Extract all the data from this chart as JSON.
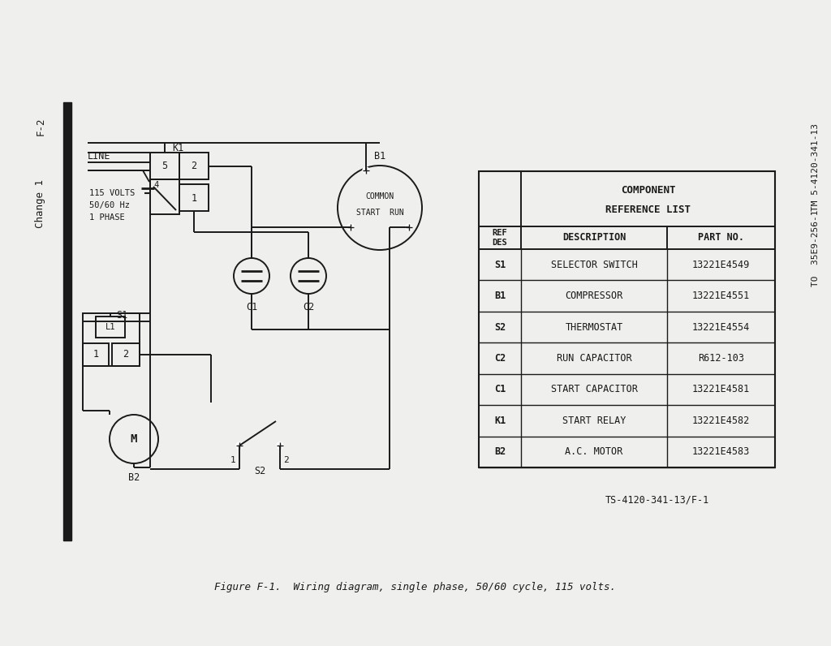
{
  "bg_color": "#efefed",
  "line_color": "#1a1a1a",
  "title_text": "Figure F-1.  Wiring diagram, single phase, 50/60 cycle, 115 volts.",
  "left_label1": "F-2",
  "left_label2": "Change 1",
  "right_label1": "TM 5-4120-341-13",
  "right_label2": "TO  35E9-256-1",
  "ref_code": "TS-4120-341-13/F-1",
  "table_header1": "COMPONENT",
  "table_header2": "REFERENCE LIST",
  "table_rows": [
    [
      "S1",
      "SELECTOR SWITCH",
      "13221E4549"
    ],
    [
      "B1",
      "COMPRESSOR",
      "13221E4551"
    ],
    [
      "S2",
      "THERMOSTAT",
      "13221E4554"
    ],
    [
      "C2",
      "RUN CAPACITOR",
      "R612-103"
    ],
    [
      "C1",
      "START CAPACITOR",
      "13221E4581"
    ],
    [
      "K1",
      "START RELAY",
      "13221E4582"
    ],
    [
      "B2",
      "A.C. MOTOR",
      "13221E4583"
    ]
  ]
}
